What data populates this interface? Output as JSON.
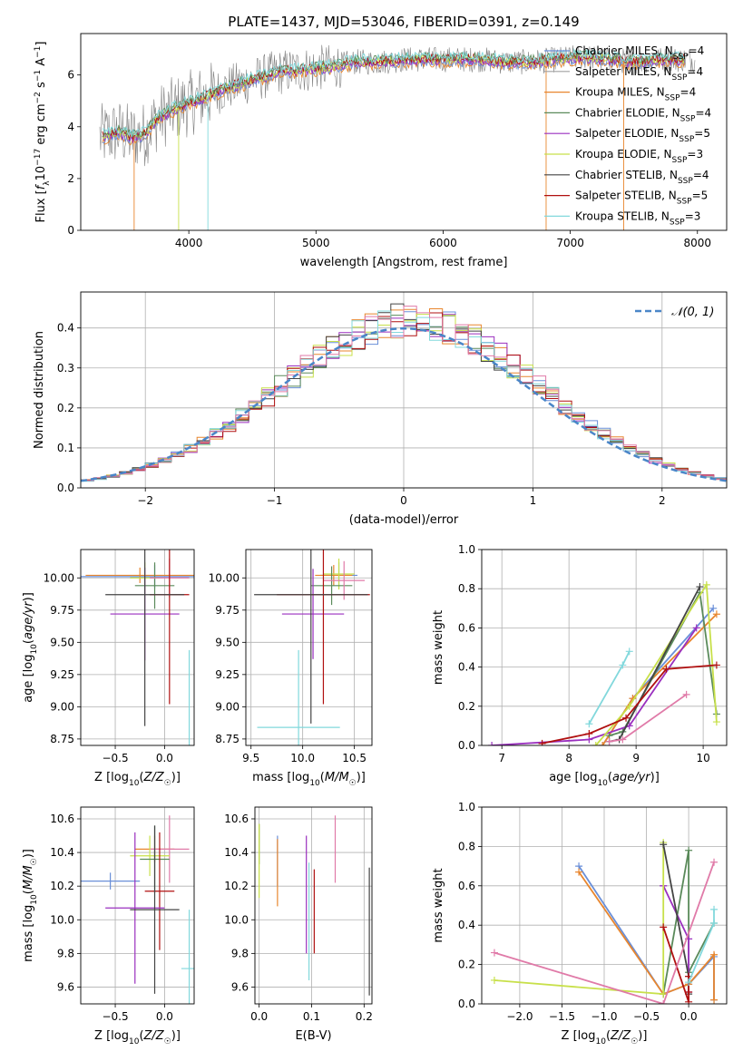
{
  "title": "PLATE=1437, MJD=53046, FIBERID=0391, z=0.149",
  "colors": {
    "Chabrier MILES": "#6a8fd8",
    "Salpeter MILES": "#a0a0a0",
    "Kroupa MILES": "#e8862e",
    "Chabrier ELODIE": "#5a8a5a",
    "Salpeter ELODIE": "#9a2fbf",
    "Kroupa ELODIE": "#c8e04a",
    "Chabrier STELIB": "#444444",
    "Salpeter STELIB": "#b01010",
    "Kroupa STELIB": "#82d8dc",
    "pink": "#e07aa8",
    "gray_spectrum": "#808080",
    "normal_curve": "#4a86c8"
  },
  "chart_data": [
    {
      "type": "line",
      "id": "spectrum",
      "xlabel": "wavelength [Angstrom, rest frame]",
      "ylabel": "Flux [f_λ 10⁻¹⁷ erg cm⁻² s⁻¹ A⁻¹]",
      "xlim": [
        3150,
        8230
      ],
      "ylim": [
        0,
        7.6
      ],
      "xticks": [
        4000,
        5000,
        6000,
        7000,
        8000
      ],
      "yticks": [
        0,
        2,
        4,
        6
      ],
      "legend": "top-right",
      "legend_entries": [
        "Chabrier MILES, N_SSP=4",
        "Salpeter MILES, N_SSP=4",
        "Kroupa MILES, N_SSP=4",
        "Chabrier ELODIE, N_SSP=4",
        "Salpeter ELODIE, N_SSP=5",
        "Kroupa ELODIE, N_SSP=3",
        "Chabrier STELIB, N_SSP=4",
        "Salpeter STELIB, N_SSP=5",
        "Kroupa STELIB, N_SSP=3"
      ],
      "continuum": {
        "x": [
          3300,
          3450,
          3550,
          3650,
          3750,
          3850,
          3950,
          4050,
          4150,
          4300,
          4500,
          4700,
          4900,
          5100,
          5300,
          5500,
          5700,
          5900,
          6100,
          6300,
          6500,
          6700,
          6900,
          7100,
          7300,
          7500,
          7700,
          7900
        ],
        "y": [
          3.6,
          3.8,
          3.6,
          3.7,
          4.3,
          4.6,
          4.8,
          5.0,
          5.2,
          5.5,
          5.8,
          6.1,
          6.2,
          6.3,
          6.5,
          6.5,
          6.6,
          6.6,
          6.6,
          6.6,
          6.5,
          6.5,
          6.6,
          6.7,
          6.6,
          6.5,
          6.6,
          6.6
        ]
      }
    },
    {
      "type": "line",
      "id": "residuals",
      "xlabel": "(data-model)/error",
      "ylabel": "Normed distribution",
      "xlim": [
        -2.5,
        2.5
      ],
      "ylim": [
        0,
        0.49
      ],
      "xticks": [
        -2,
        -1,
        0,
        1,
        2
      ],
      "yticks": [
        0.0,
        0.1,
        0.2,
        0.3,
        0.4
      ],
      "grid": true,
      "legend": "top-right",
      "legend_entries": [
        "𝒩(0, 1)"
      ]
    },
    {
      "type": "scatter",
      "id": "age_vs_Z",
      "xlabel": "Z [log₁₀(Z/Z☉)]",
      "ylabel": "age  [log₁₀(age/yr)]",
      "xlim": [
        -0.85,
        0.3
      ],
      "ylim": [
        8.7,
        10.22
      ],
      "xticks": [
        -0.5,
        0.0
      ],
      "yticks": [
        8.75,
        9.0,
        9.25,
        9.5,
        9.75,
        10.0
      ],
      "grid": true,
      "points": [
        {
          "series": "Chabrier MILES",
          "x": -0.1,
          "y": 10.01,
          "xerr": 0.75,
          "yerr": 0.09
        },
        {
          "series": "Kroupa MILES",
          "x": -0.25,
          "y": 10.02,
          "xerr": 0.55,
          "yerr": 0.06
        },
        {
          "series": "Kroupa ELODIE",
          "x": -0.2,
          "y": 10.0,
          "xerr": 0.15,
          "yerr": 0.12
        },
        {
          "series": "Chabrier ELODIE",
          "x": -0.1,
          "y": 9.94,
          "xerr": 0.2,
          "yerr": 0.18
        },
        {
          "series": "pink",
          "x": 0.05,
          "y": 10.0,
          "xerr": 0.2,
          "yerr": 0.15
        },
        {
          "series": "Salpeter ELODIE",
          "x": -0.2,
          "y": 9.72,
          "xerr": 0.35,
          "yerr": 0.36
        },
        {
          "series": "Salpeter STELIB",
          "x": 0.05,
          "y": 9.87,
          "xerr": 0.2,
          "yerr": 0.85
        },
        {
          "series": "Chabrier STELIB",
          "x": -0.2,
          "y": 9.87,
          "xerr": 0.4,
          "yerr": 1.02
        },
        {
          "series": "Kroupa STELIB",
          "x": 0.25,
          "y": 8.84,
          "xerr": 0.0,
          "yerr": 0.6
        }
      ]
    },
    {
      "type": "scatter",
      "id": "age_vs_mass",
      "xlabel": "mass [log₁₀(M/M☉)]",
      "ylabel": "",
      "xlim": [
        9.45,
        10.67
      ],
      "ylim": [
        8.7,
        10.22
      ],
      "xticks": [
        9.5,
        10.0,
        10.5
      ],
      "yticks": [
        8.75,
        9.0,
        9.25,
        9.5,
        9.75,
        10.0
      ],
      "grid": true,
      "points": [
        {
          "series": "Chabrier MILES",
          "x": 10.35,
          "y": 10.02,
          "xerr": 0.18,
          "yerr": 0.1
        },
        {
          "series": "Kroupa MILES",
          "x": 10.3,
          "y": 10.02,
          "xerr": 0.18,
          "yerr": 0.08
        },
        {
          "series": "Kroupa ELODIE",
          "x": 10.35,
          "y": 10.03,
          "xerr": 0.15,
          "yerr": 0.12
        },
        {
          "series": "Chabrier ELODIE",
          "x": 10.28,
          "y": 9.94,
          "xerr": 0.2,
          "yerr": 0.15
        },
        {
          "series": "pink",
          "x": 10.4,
          "y": 9.98,
          "xerr": 0.2,
          "yerr": 0.15
        },
        {
          "series": "Salpeter ELODIE",
          "x": 10.1,
          "y": 9.72,
          "xerr": 0.3,
          "yerr": 0.35
        },
        {
          "series": "Salpeter STELIB",
          "x": 10.2,
          "y": 9.87,
          "xerr": 0.45,
          "yerr": 0.85
        },
        {
          "series": "Chabrier STELIB",
          "x": 10.08,
          "y": 9.87,
          "xerr": 0.55,
          "yerr": 1.0
        },
        {
          "series": "Kroupa STELIB",
          "x": 9.96,
          "y": 8.84,
          "xerr": 0.4,
          "yerr": 0.6
        }
      ]
    },
    {
      "type": "line",
      "id": "massweight_vs_age",
      "xlabel": "age  [log₁₀(age/yr)]",
      "ylabel": "mass weight",
      "xlim": [
        6.7,
        10.35
      ],
      "ylim": [
        0,
        1.0
      ],
      "xticks": [
        7,
        8,
        9,
        10
      ],
      "yticks": [
        0.0,
        0.2,
        0.4,
        0.6,
        0.8,
        1.0
      ],
      "grid": true,
      "series": [
        {
          "color": "Chabrier MILES",
          "x": [
            8.5,
            8.95,
            10.15
          ],
          "y": [
            0.0,
            0.24,
            0.7
          ]
        },
        {
          "color": "Kroupa MILES",
          "x": [
            8.5,
            8.95,
            10.2
          ],
          "y": [
            0.0,
            0.24,
            0.67
          ]
        },
        {
          "color": "Chabrier ELODIE",
          "x": [
            8.6,
            8.8,
            9.95,
            10.2
          ],
          "y": [
            0.05,
            0.07,
            0.78,
            0.16
          ]
        },
        {
          "color": "Salpeter ELODIE",
          "x": [
            6.85,
            8.3,
            8.9,
            9.9
          ],
          "y": [
            0.0,
            0.03,
            0.1,
            0.6
          ]
        },
        {
          "color": "Kroupa ELODIE",
          "x": [
            8.4,
            8.9,
            10.05,
            10.2
          ],
          "y": [
            0.0,
            0.2,
            0.82,
            0.12
          ]
        },
        {
          "color": "Chabrier STELIB",
          "x": [
            8.6,
            8.75,
            9.95
          ],
          "y": [
            0.02,
            0.03,
            0.81
          ]
        },
        {
          "color": "Salpeter STELIB",
          "x": [
            7.6,
            8.3,
            8.85,
            9.45,
            10.2
          ],
          "y": [
            0.01,
            0.06,
            0.14,
            0.39,
            0.41
          ]
        },
        {
          "color": "Kroupa STELIB",
          "x": [
            8.3,
            8.8,
            8.9
          ],
          "y": [
            0.11,
            0.41,
            0.48
          ]
        },
        {
          "color": "pink",
          "x": [
            8.6,
            8.8,
            9.75
          ],
          "y": [
            0.02,
            0.03,
            0.26
          ]
        }
      ]
    },
    {
      "type": "scatter",
      "id": "mass_vs_Z",
      "xlabel": "Z [log₁₀(Z/Z☉)]",
      "ylabel": "mass [log₁₀(M/M☉)]",
      "xlim": [
        -0.85,
        0.3
      ],
      "ylim": [
        9.5,
        10.67
      ],
      "xticks": [
        -0.5,
        0.0
      ],
      "yticks": [
        9.6,
        9.8,
        10.0,
        10.2,
        10.4,
        10.6
      ],
      "grid": true,
      "points": [
        {
          "series": "Kroupa MILES",
          "x": -0.1,
          "y": 10.42,
          "xerr": 0.2,
          "yerr": 0.08
        },
        {
          "series": "pink",
          "x": 0.05,
          "y": 10.42,
          "xerr": 0.2,
          "yerr": 0.2
        },
        {
          "series": "Kroupa ELODIE",
          "x": -0.15,
          "y": 10.38,
          "xerr": 0.2,
          "yerr": 0.12
        },
        {
          "series": "Chabrier ELODIE",
          "x": -0.1,
          "y": 10.36,
          "xerr": 0.15,
          "yerr": 0.2
        },
        {
          "series": "Chabrier MILES",
          "x": -0.55,
          "y": 10.23,
          "xerr": 0.3,
          "yerr": 0.05
        },
        {
          "series": "Salpeter STELIB",
          "x": -0.05,
          "y": 10.17,
          "xerr": 0.15,
          "yerr": 0.35
        },
        {
          "series": "Salpeter ELODIE",
          "x": -0.3,
          "y": 10.07,
          "xerr": 0.3,
          "yerr": 0.45
        },
        {
          "series": "Chabrier STELIB",
          "x": -0.1,
          "y": 10.06,
          "xerr": 0.25,
          "yerr": 0.5
        },
        {
          "series": "Kroupa STELIB",
          "x": 0.25,
          "y": 9.71,
          "xerr": 0.08,
          "yerr": 0.35
        }
      ]
    },
    {
      "type": "scatter",
      "id": "mass_vs_EBV",
      "xlabel": "E(B-V)",
      "ylabel": "",
      "xlim": [
        -0.008,
        0.215
      ],
      "ylim": [
        9.5,
        10.67
      ],
      "xticks": [
        0.0,
        0.1,
        0.2
      ],
      "yticks": [
        9.6,
        9.8,
        10.0,
        10.2,
        10.4,
        10.6
      ],
      "grid": true,
      "points": [
        {
          "series": "Chabrier ELODIE",
          "x": 0.0,
          "y": 10.45,
          "yerr": 0.12
        },
        {
          "series": "Kroupa ELODIE",
          "x": 0.0,
          "y": 10.35,
          "yerr": 0.22
        },
        {
          "series": "Chabrier MILES",
          "x": 0.035,
          "y": 10.35,
          "yerr": 0.15
        },
        {
          "series": "Kroupa MILES",
          "x": 0.035,
          "y": 10.28,
          "yerr": 0.2
        },
        {
          "series": "Salpeter ELODIE",
          "x": 0.09,
          "y": 10.15,
          "yerr": 0.35
        },
        {
          "series": "Kroupa STELIB",
          "x": 0.095,
          "y": 9.99,
          "yerr": 0.35
        },
        {
          "series": "Salpeter STELIB",
          "x": 0.105,
          "y": 10.05,
          "yerr": 0.25
        },
        {
          "series": "pink",
          "x": 0.145,
          "y": 10.42,
          "yerr": 0.2
        },
        {
          "series": "Chabrier STELIB",
          "x": 0.21,
          "y": 9.93,
          "yerr": 0.38
        }
      ]
    },
    {
      "type": "line",
      "id": "massweight_vs_Z",
      "xlabel": "Z [log₁₀(Z/Z☉)]",
      "ylabel": "mass weight",
      "xlim": [
        -2.45,
        0.45
      ],
      "ylim": [
        0,
        1.0
      ],
      "xticks": [
        -2.0,
        -1.5,
        -1.0,
        -0.5,
        0.0
      ],
      "yticks": [
        0.0,
        0.2,
        0.4,
        0.6,
        0.8,
        1.0
      ],
      "grid": true,
      "series": [
        {
          "color": "Chabrier MILES",
          "x": [
            -1.3,
            -0.3,
            0.0,
            0.3,
            0.3
          ],
          "y": [
            0.7,
            0.05,
            0.1,
            0.24,
            0.02
          ]
        },
        {
          "color": "Kroupa MILES",
          "x": [
            -1.3,
            -0.3,
            0.0,
            0.3,
            0.3
          ],
          "y": [
            0.67,
            0.05,
            0.1,
            0.25,
            0.02
          ]
        },
        {
          "color": "Chabrier ELODIE",
          "x": [
            -0.3,
            0.0,
            0.0,
            0.3
          ],
          "y": [
            0.05,
            0.78,
            0.16,
            0.41
          ]
        },
        {
          "color": "Salpeter ELODIE",
          "x": [
            -0.3,
            -0.3,
            0.0,
            0.0
          ],
          "y": [
            0.6,
            0.6,
            0.33,
            0.06
          ]
        },
        {
          "color": "Kroupa ELODIE",
          "x": [
            -2.3,
            -0.3,
            -0.3
          ],
          "y": [
            0.12,
            0.05,
            0.82
          ]
        },
        {
          "color": "Chabrier STELIB",
          "x": [
            -0.3,
            0.0,
            0.0
          ],
          "y": [
            0.81,
            0.14,
            0.05
          ]
        },
        {
          "color": "Salpeter STELIB",
          "x": [
            -0.3,
            0.0,
            0.0,
            0.0
          ],
          "y": [
            0.39,
            0.01,
            0.06,
            0.14
          ]
        },
        {
          "color": "Kroupa STELIB",
          "x": [
            0.0,
            0.3,
            0.3
          ],
          "y": [
            0.11,
            0.41,
            0.48
          ]
        },
        {
          "color": "pink",
          "x": [
            -2.3,
            -0.3,
            0.3
          ],
          "y": [
            0.26,
            0.0,
            0.72
          ]
        }
      ]
    }
  ]
}
